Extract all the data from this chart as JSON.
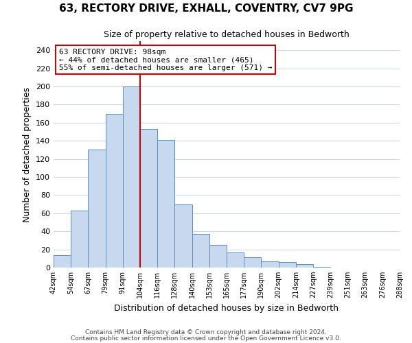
{
  "title": "63, RECTORY DRIVE, EXHALL, COVENTRY, CV7 9PG",
  "subtitle": "Size of property relative to detached houses in Bedworth",
  "xlabel": "Distribution of detached houses by size in Bedworth",
  "ylabel": "Number of detached properties",
  "bin_labels": [
    "42sqm",
    "54sqm",
    "67sqm",
    "79sqm",
    "91sqm",
    "104sqm",
    "116sqm",
    "128sqm",
    "140sqm",
    "153sqm",
    "165sqm",
    "177sqm",
    "190sqm",
    "202sqm",
    "214sqm",
    "227sqm",
    "239sqm",
    "251sqm",
    "263sqm",
    "276sqm",
    "288sqm"
  ],
  "bar_heights": [
    14,
    63,
    130,
    170,
    200,
    153,
    141,
    70,
    37,
    25,
    17,
    11,
    7,
    6,
    4,
    1,
    0,
    0,
    0,
    0
  ],
  "bar_color": "#c8d9ed",
  "bar_edge_color": "#5b8ec4",
  "ylim": [
    0,
    250
  ],
  "yticks": [
    0,
    20,
    40,
    60,
    80,
    100,
    120,
    140,
    160,
    180,
    200,
    220,
    240
  ],
  "vline_x": 5,
  "vline_color": "#cc0000",
  "annotation_title": "63 RECTORY DRIVE: 98sqm",
  "annotation_line1": "← 44% of detached houses are smaller (465)",
  "annotation_line2": "55% of semi-detached houses are larger (571) →",
  "annotation_box_color": "#ffffff",
  "annotation_box_edge": "#cc0000",
  "footer1": "Contains HM Land Registry data © Crown copyright and database right 2024.",
  "footer2": "Contains public sector information licensed under the Open Government Licence v3.0.",
  "background_color": "#ffffff",
  "grid_color": "#d0d8e8"
}
